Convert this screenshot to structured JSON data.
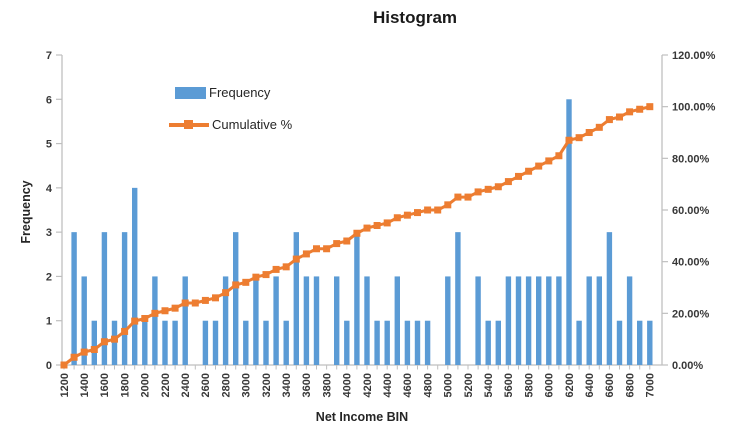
{
  "title": "Histogram",
  "legend": {
    "frequency_label": "Frequency",
    "cumulative_label": "Cumulative %"
  },
  "axes": {
    "left_title": "Frequency",
    "left_ticks": [
      "0",
      "1",
      "2",
      "3",
      "4",
      "5",
      "6",
      "7"
    ],
    "right_ticks": [
      "0.00%",
      "20.00%",
      "40.00%",
      "60.00%",
      "80.00%",
      "100.00%",
      "120.00%"
    ],
    "x_title": "Net Income BIN",
    "x_tick_labels_shown": [
      "1200",
      "1400",
      "1600",
      "1800",
      "2000",
      "2200",
      "2400",
      "2600",
      "2800",
      "3000",
      "3200",
      "3400",
      "3600",
      "3800",
      "4000",
      "4200",
      "4400",
      "4600",
      "4800",
      "5000",
      "5200",
      "5400",
      "5600",
      "5800",
      "6000",
      "6200",
      "6400",
      "6600",
      "6800",
      "7000"
    ]
  },
  "colors": {
    "bar": "#5B9BD5",
    "line": "#ED7D31",
    "axis": "#BFBFBF",
    "tick_text": "#383838",
    "title_text": "#1a1a1a"
  },
  "chart_data": {
    "type": "bar",
    "subtype": "pareto-histogram-combo",
    "title": "Histogram",
    "xlabel": "Net Income BIN",
    "ylabel_left": "Frequency",
    "ylabel_right": "Cumulative %",
    "left_axis_range": [
      0,
      7
    ],
    "right_axis_range_percent": [
      0,
      120
    ],
    "right_axis_step_percent": 20,
    "x_label_every": 2,
    "grid": false,
    "legend_position": "inside-top-left",
    "categories": [
      1200,
      1300,
      1400,
      1500,
      1600,
      1700,
      1800,
      1900,
      2000,
      2100,
      2200,
      2300,
      2400,
      2500,
      2600,
      2700,
      2800,
      2900,
      3000,
      3100,
      3200,
      3300,
      3400,
      3500,
      3600,
      3700,
      3800,
      3900,
      4000,
      4100,
      4200,
      4300,
      4400,
      4500,
      4600,
      4700,
      4800,
      4900,
      5000,
      5100,
      5200,
      5300,
      5400,
      5500,
      5600,
      5700,
      5800,
      5900,
      6000,
      6100,
      6200,
      6300,
      6400,
      6500,
      6600,
      6700,
      6800,
      6900,
      7000
    ],
    "series": [
      {
        "name": "Frequency",
        "type": "bar",
        "axis": "left",
        "values": [
          0,
          3,
          2,
          1,
          3,
          1,
          3,
          4,
          1,
          2,
          1,
          1,
          2,
          0,
          1,
          1,
          2,
          3,
          1,
          2,
          1,
          2,
          1,
          3,
          2,
          2,
          0,
          2,
          1,
          3,
          2,
          1,
          1,
          2,
          1,
          1,
          1,
          0,
          2,
          3,
          0,
          2,
          1,
          1,
          2,
          2,
          2,
          2,
          2,
          2,
          6,
          1,
          2,
          2,
          3,
          1,
          2,
          1,
          1
        ]
      },
      {
        "name": "Cumulative %",
        "type": "line",
        "axis": "right",
        "marker": "square",
        "values_percent": [
          0,
          3,
          5,
          6,
          9,
          10,
          13,
          17,
          18,
          20,
          21,
          22,
          24,
          24,
          25,
          26,
          28,
          31,
          32,
          34,
          35,
          37,
          38,
          41,
          43,
          45,
          45,
          47,
          48,
          51,
          53,
          54,
          55,
          57,
          58,
          59,
          60,
          60,
          62,
          65,
          65,
          67,
          68,
          69,
          71,
          73,
          75,
          77,
          79,
          81,
          87,
          88,
          90,
          92,
          95,
          96,
          98,
          99,
          100
        ]
      }
    ]
  }
}
